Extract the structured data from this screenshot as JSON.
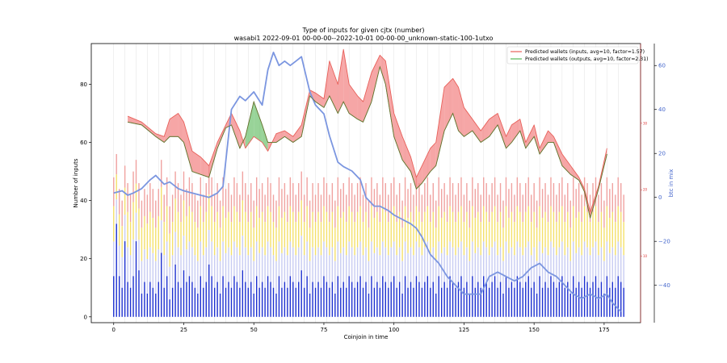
{
  "chart_data": {
    "type": "line",
    "title": "Type of inputs for given cjtx (number)",
    "subtitle": "wasabi1 2022-09-01 00-00-00--2022-10-01 00-00-00_unknown-static-100-1utxo",
    "xlabel": "Coinjoin in time",
    "ylabel": "Number of inputs",
    "y2label": "btc in mix",
    "xlim": [
      -8,
      188
    ],
    "ylim": [
      -2,
      94
    ],
    "y2lim": [
      -57,
      70
    ],
    "x_ticks": [
      0,
      25,
      50,
      75,
      100,
      125,
      150,
      175
    ],
    "y_ticks": [
      0,
      20,
      40,
      60,
      80
    ],
    "y2_ticks": [
      -40,
      -20,
      0,
      20,
      40,
      60
    ],
    "y3_ticks": [
      10,
      20,
      30
    ],
    "legend_position": "top-right",
    "legend": [
      {
        "label": "Predicted wallets (inputs, avg=10, factor=1.57)",
        "color": "#e8605a"
      },
      {
        "label": "Predicted wallets (outputs, avg=10, factor=2.31)",
        "color": "#5ab85a"
      }
    ],
    "series": [
      {
        "name": "Predicted wallets (inputs, avg=10, factor=1.57)",
        "axis": "left",
        "color": "#e8605a",
        "x": [
          5,
          10,
          15,
          18,
          20,
          23,
          25,
          28,
          31,
          34,
          37,
          40,
          42,
          45,
          47,
          50,
          53,
          55,
          58,
          61,
          64,
          67,
          70,
          72,
          75,
          77,
          80,
          82,
          84,
          87,
          89,
          92,
          95,
          97,
          100,
          103,
          106,
          108,
          110,
          113,
          115,
          118,
          121,
          123,
          125,
          128,
          131,
          134,
          137,
          140,
          142,
          145,
          147,
          150,
          152,
          155,
          157,
          160,
          163,
          166,
          168,
          170,
          173,
          176
        ],
        "values": [
          69,
          67,
          63,
          62,
          68,
          70,
          67,
          57,
          55,
          52,
          60,
          66,
          70,
          64,
          58,
          62,
          60,
          57,
          63,
          64,
          62,
          66,
          78,
          77,
          75,
          88,
          80,
          92,
          80,
          76,
          74,
          84,
          90,
          88,
          70,
          62,
          55,
          48,
          52,
          58,
          60,
          79,
          82,
          79,
          72,
          68,
          64,
          68,
          70,
          62,
          66,
          68,
          60,
          66,
          58,
          64,
          62,
          56,
          52,
          48,
          44,
          36,
          45,
          58
        ]
      },
      {
        "name": "Predicted wallets (outputs, avg=10, factor=2.31)",
        "axis": "left",
        "color": "#5ab85a",
        "x": [
          5,
          10,
          15,
          18,
          20,
          23,
          25,
          28,
          31,
          34,
          37,
          40,
          42,
          45,
          47,
          50,
          53,
          55,
          58,
          61,
          64,
          67,
          70,
          72,
          75,
          77,
          80,
          82,
          84,
          87,
          89,
          92,
          95,
          97,
          100,
          103,
          106,
          108,
          110,
          113,
          115,
          118,
          121,
          123,
          125,
          128,
          131,
          134,
          137,
          140,
          142,
          145,
          147,
          150,
          152,
          155,
          157,
          160,
          163,
          166,
          168,
          170,
          173,
          176
        ],
        "values": [
          67,
          66,
          62,
          60,
          62,
          62,
          60,
          50,
          49,
          48,
          58,
          65,
          66,
          58,
          62,
          74,
          66,
          60,
          60,
          62,
          60,
          62,
          76,
          74,
          72,
          76,
          70,
          74,
          70,
          68,
          67,
          74,
          86,
          80,
          62,
          54,
          50,
          44,
          46,
          50,
          52,
          64,
          70,
          64,
          62,
          64,
          60,
          62,
          66,
          58,
          60,
          64,
          58,
          62,
          56,
          60,
          60,
          52,
          49,
          47,
          43,
          34,
          44,
          56
        ]
      },
      {
        "name": "",
        "axis": "right",
        "color": "#7b96e0",
        "x": [
          0,
          3,
          5,
          7,
          10,
          13,
          15,
          18,
          20,
          23,
          25,
          28,
          31,
          34,
          37,
          39,
          42,
          45,
          47,
          50,
          53,
          55,
          57,
          59,
          61,
          63,
          65,
          67,
          70,
          72,
          75,
          77,
          80,
          82,
          85,
          88,
          90,
          93,
          95,
          98,
          100,
          103,
          106,
          108,
          110,
          113,
          116,
          119,
          122,
          125,
          128,
          131,
          134,
          137,
          140,
          143,
          146,
          149,
          152,
          155,
          158,
          161,
          164,
          167,
          170,
          173,
          176,
          178,
          181
        ],
        "values": [
          2,
          3,
          1,
          2,
          4,
          8,
          10,
          6,
          7,
          4,
          3,
          2,
          1,
          0,
          2,
          5,
          40,
          46,
          44,
          48,
          42,
          58,
          66,
          60,
          62,
          60,
          62,
          64,
          48,
          42,
          38,
          28,
          16,
          14,
          12,
          8,
          0,
          -4,
          -4,
          -6,
          -8,
          -10,
          -12,
          -14,
          -18,
          -26,
          -30,
          -36,
          -40,
          -44,
          -44,
          -44,
          -36,
          -34,
          -36,
          -38,
          -36,
          -32,
          -30,
          -34,
          -36,
          -40,
          -44,
          -46,
          -44,
          -46,
          -44,
          -48,
          -52
        ]
      }
    ],
    "bars": {
      "blue_heights": [
        14,
        32,
        14,
        10,
        26,
        12,
        10,
        14,
        26,
        16,
        8,
        12,
        8,
        12,
        10,
        8,
        12,
        22,
        10,
        14,
        6,
        10,
        18,
        12,
        10,
        16,
        12,
        14,
        12,
        10,
        8,
        14,
        10,
        12,
        18,
        14,
        10,
        12,
        8,
        14,
        10,
        12,
        10,
        14,
        12,
        10,
        16,
        12,
        10,
        12,
        8,
        14,
        10,
        12,
        10,
        14,
        12,
        10,
        8,
        14,
        10,
        12,
        10,
        14,
        12,
        10,
        12,
        16,
        10,
        14,
        8,
        12,
        10,
        12,
        10,
        14,
        12,
        10,
        12,
        8,
        14,
        10,
        12,
        10,
        14,
        12,
        10,
        12,
        14,
        10,
        12,
        8,
        14,
        10,
        12,
        10,
        14,
        12,
        10,
        12,
        14,
        10,
        12,
        8,
        14,
        10,
        12,
        10,
        14,
        12,
        10,
        12,
        14,
        10,
        12,
        8,
        14,
        10,
        12,
        10,
        14,
        12,
        10,
        12,
        14,
        10,
        12,
        8,
        14,
        10,
        12,
        10,
        14,
        12,
        10,
        12,
        14,
        10,
        12,
        8,
        14,
        10,
        12,
        10,
        14,
        12,
        10,
        12,
        14,
        10,
        12,
        8,
        14,
        10,
        12,
        10,
        14,
        12,
        10,
        12,
        14,
        10,
        12,
        8,
        14,
        10,
        12,
        10,
        14,
        12,
        10,
        12,
        14,
        10,
        12,
        8,
        14,
        10,
        12,
        10,
        14,
        12,
        10
      ],
      "total_heights": [
        48,
        56,
        44,
        40,
        52,
        46,
        42,
        50,
        54,
        46,
        40,
        44,
        42,
        46,
        44,
        40,
        44,
        54,
        42,
        48,
        38,
        42,
        50,
        46,
        42,
        50,
        44,
        48,
        46,
        42,
        40,
        48,
        42,
        46,
        52,
        48,
        42,
        46,
        40,
        48,
        44,
        46,
        42,
        48,
        46,
        42,
        50,
        46,
        42,
        46,
        40,
        48,
        44,
        46,
        42,
        48,
        46,
        42,
        40,
        48,
        44,
        46,
        42,
        48,
        46,
        42,
        46,
        50,
        42,
        48,
        40,
        46,
        42,
        46,
        42,
        48,
        46,
        42,
        46,
        40,
        48,
        44,
        46,
        42,
        48,
        46,
        42,
        46,
        48,
        42,
        46,
        40,
        48,
        44,
        46,
        42,
        48,
        46,
        42,
        46,
        48,
        42,
        46,
        40,
        48,
        44,
        46,
        42,
        48,
        46,
        42,
        46,
        48,
        42,
        46,
        40,
        48,
        44,
        46,
        42,
        48,
        46,
        42,
        46,
        48,
        42,
        46,
        40,
        48,
        44,
        46,
        42,
        48,
        46,
        42,
        46,
        48,
        42,
        46,
        40,
        48,
        44,
        46,
        42,
        48,
        46,
        42,
        46,
        48,
        42,
        46,
        40,
        48,
        44,
        46,
        42,
        48,
        46,
        42,
        46,
        48,
        42,
        46,
        40,
        48,
        44,
        46,
        42,
        48,
        46,
        42,
        46,
        48,
        42,
        46,
        40,
        48,
        44,
        46,
        42,
        48,
        46,
        42
      ],
      "colors": [
        "#1c2fd0",
        "#c8ccf2",
        "#f4e06a",
        "#f0a2a0"
      ]
    }
  }
}
